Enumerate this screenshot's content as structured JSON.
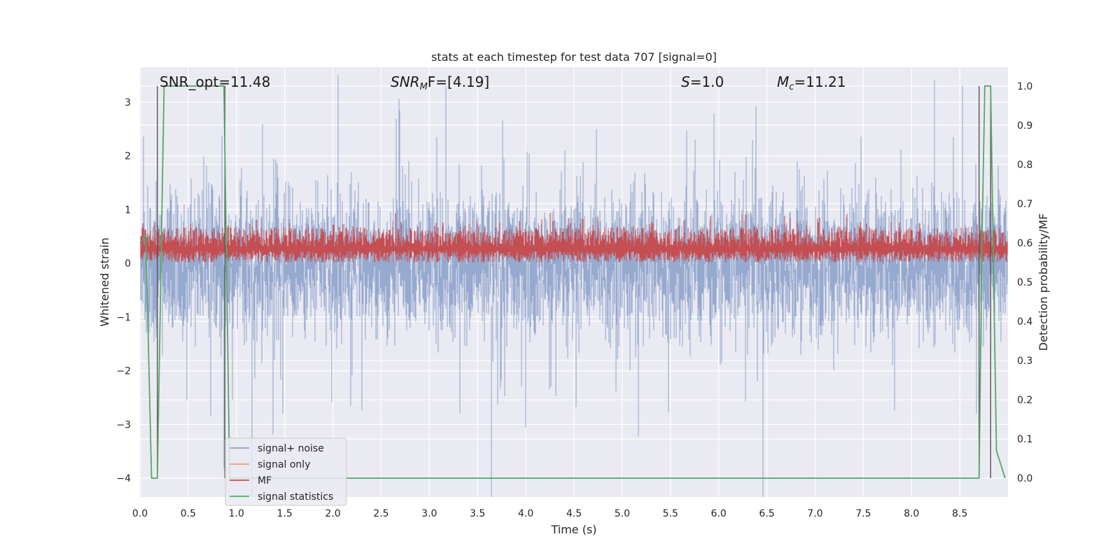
{
  "chart_data": {
    "type": "line",
    "title": "stats at each timestep for test data 707 [signal=0]",
    "xlabel": "Time (s)",
    "ylabel": "Whitened strain",
    "y2label": "Detection probability/MF",
    "xlim": [
      0,
      9.0
    ],
    "ylim": [
      -4.35,
      3.65
    ],
    "y2lim": [
      -0.048,
      1.048
    ],
    "xticks": [
      "0.0",
      "0.5",
      "1.0",
      "1.5",
      "2.0",
      "2.5",
      "3.0",
      "3.5",
      "4.0",
      "4.5",
      "5.0",
      "5.5",
      "6.0",
      "6.5",
      "7.0",
      "7.5",
      "8.0",
      "8.5"
    ],
    "yticks": [
      "3",
      "2",
      "1",
      "0",
      "−1",
      "−2",
      "−3",
      "−4"
    ],
    "y2ticks": [
      "1.0",
      "0.9",
      "0.8",
      "0.7",
      "0.6",
      "0.5",
      "0.4",
      "0.3",
      "0.2",
      "0.1",
      "0.0"
    ],
    "grid": true,
    "legend_position": "lower-left",
    "annotations": {
      "snr_opt": "SNR_opt=11.48",
      "snr_mf_main": "SNR",
      "snr_mf_sub": "M",
      "snr_mf_rest": "F=[4.19]",
      "s_main": "S",
      "s_rest": "=1.0",
      "mc_main": "M",
      "mc_sub": "c",
      "mc_rest": "=11.21"
    },
    "series": [
      {
        "name": "signal+ noise",
        "color": "#91a5cc",
        "axis": "left",
        "description": "dense whitened noise, roughly ±2 with peaks to ±3.3",
        "range": [
          -4.0,
          3.3
        ]
      },
      {
        "name": "signal only",
        "color": "#e8a07a",
        "axis": "left",
        "values": []
      },
      {
        "name": "MF",
        "color": "#c44e52",
        "axis": "right",
        "description": "dense matched-filter output between about 0.55 and 0.68",
        "range": [
          0.55,
          0.68
        ]
      },
      {
        "name": "signal statistics",
        "color": "#55a868",
        "axis": "right",
        "points": [
          [
            0.0,
            0.6
          ],
          [
            0.06,
            0.62
          ],
          [
            0.12,
            0.0
          ],
          [
            0.18,
            0.0
          ],
          [
            0.25,
            1.0
          ],
          [
            0.87,
            1.0
          ],
          [
            0.93,
            0.0
          ],
          [
            8.7,
            0.0
          ],
          [
            8.73,
            0.6
          ],
          [
            8.76,
            1.0
          ],
          [
            8.82,
            1.0
          ],
          [
            8.88,
            0.07
          ],
          [
            8.97,
            0.0
          ]
        ]
      }
    ],
    "vlines": [
      0.18,
      0.88,
      8.7,
      8.82
    ]
  }
}
